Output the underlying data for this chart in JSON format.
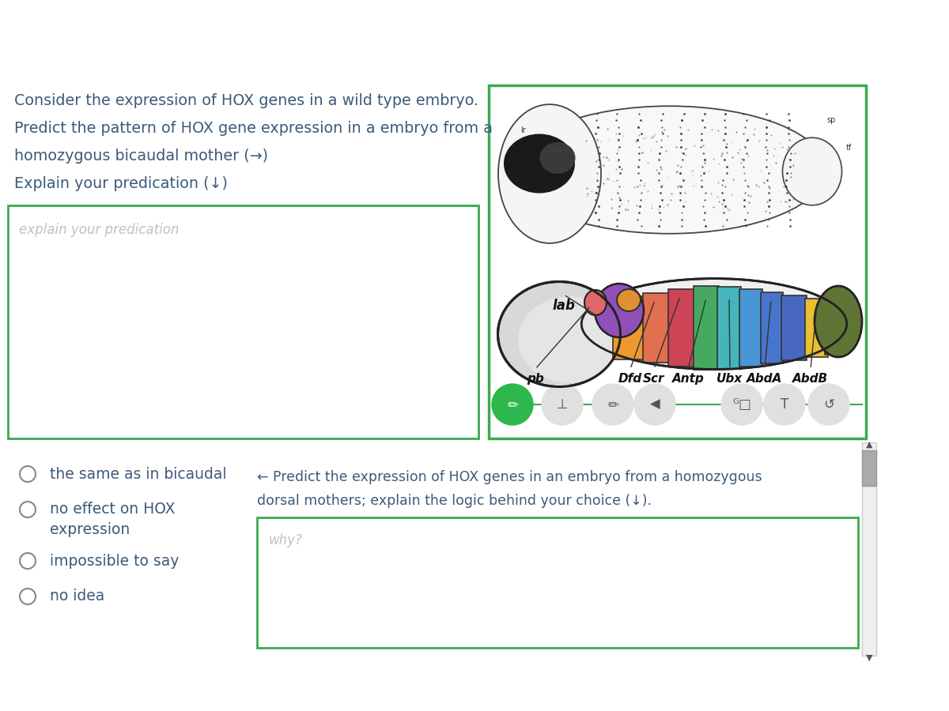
{
  "bg_color": "#ffffff",
  "text_color": "#3d5a7a",
  "green_border": "#3aaa50",
  "placeholder_color": "#c0c0c0",
  "title_lines": [
    "Consider the expression of HOX genes in a wild type embryo.",
    "Predict the pattern of HOX gene expression in a embryo from a",
    "homozygous bicaudal mother (→)",
    "Explain your predication (↓)"
  ],
  "explain_placeholder": "explain your predication",
  "radio_options": [
    "the same as in bicaudal",
    "no effect on HOX",
    "expression",
    "impossible to say",
    "no idea"
  ],
  "dorsal_text_line1": "← Predict the expression of HOX genes in an embryo from a homozygous",
  "dorsal_text_line2": "dorsal mothers; explain the logic behind your choice (↓).",
  "why_placeholder": "why?",
  "hox_labels": [
    "lab",
    "pb",
    "Dfd",
    "Scr",
    "Antp",
    "Ubx",
    "AbdA",
    "AbdB"
  ],
  "seg_colors": [
    "#f09830",
    "#e07050",
    "#d04858",
    "#48b068",
    "#48b8c0",
    "#4898d8",
    "#4878d0",
    "#e8c838",
    "#607040"
  ],
  "head_color": "#d8d8d8",
  "purple_color": "#9050b8",
  "pink_color": "#e06868",
  "orange_small": "#e09030"
}
